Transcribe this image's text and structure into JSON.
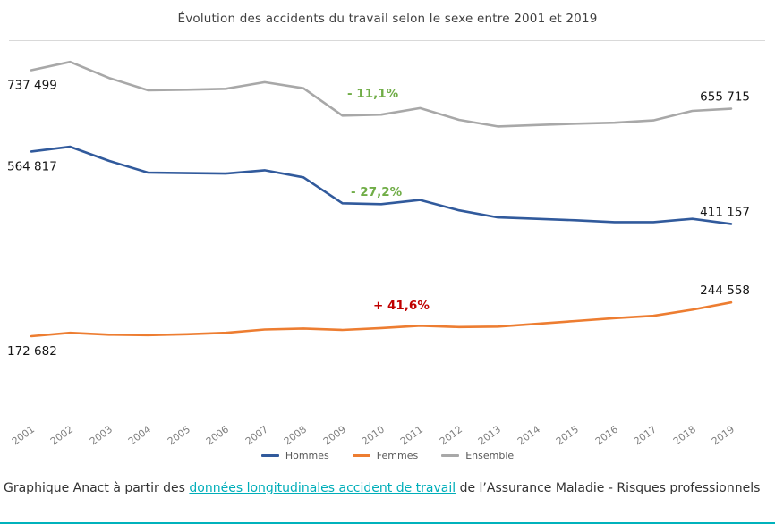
{
  "chart_data": {
    "type": "line",
    "title": "Évolution des accidents du travail selon le sexe entre 2001 et 2019",
    "categories": [
      "2001",
      "2002",
      "2003",
      "2004",
      "2005",
      "2006",
      "2007",
      "2008",
      "2009",
      "2010",
      "2011",
      "2012",
      "2013",
      "2014",
      "2015",
      "2016",
      "2017",
      "2018",
      "2019"
    ],
    "series": [
      {
        "name": "Hommes",
        "color": "#315a9c",
        "start_label": "564 817",
        "end_label": "411 157",
        "values": [
          564817,
          575000,
          545000,
          520000,
          519000,
          518000,
          525000,
          510000,
          455000,
          453000,
          462000,
          440000,
          425000,
          422000,
          419000,
          415000,
          415000,
          422000,
          411157
        ]
      },
      {
        "name": "Femmes",
        "color": "#ed7d31",
        "start_label": "172 682",
        "end_label": "244 558",
        "values": [
          172682,
          180000,
          176000,
          175000,
          177000,
          180000,
          187000,
          189000,
          186000,
          190000,
          195000,
          192000,
          193000,
          199000,
          205000,
          211000,
          216000,
          229000,
          244558
        ]
      },
      {
        "name": "Ensemble",
        "color": "#a8a8a8",
        "start_label": "737 499",
        "end_label": "655 715",
        "values": [
          737499,
          755000,
          721000,
          695000,
          696000,
          698000,
          712000,
          699000,
          641000,
          643000,
          657000,
          632000,
          618000,
          621000,
          624000,
          626000,
          631000,
          651000,
          655715
        ]
      }
    ],
    "annotations": [
      {
        "series": "Ensemble",
        "text": "- 11,1%",
        "color": "#70ad47"
      },
      {
        "series": "Hommes",
        "text": "- 27,2%",
        "color": "#70ad47"
      },
      {
        "series": "Femmes",
        "text": "+ 41,6%",
        "color": "#c00000"
      }
    ],
    "ylim": [
      0,
      820000
    ],
    "grid": false,
    "legend_position": "bottom",
    "legend_items": [
      "Hommes",
      "Femmes",
      "Ensemble"
    ]
  },
  "caption": {
    "prefix": "Graphique Anact à partir des ",
    "link_text": "données longitudinales accident de travail",
    "suffix": " de l’Assurance Maladie - Risques professionnels"
  }
}
